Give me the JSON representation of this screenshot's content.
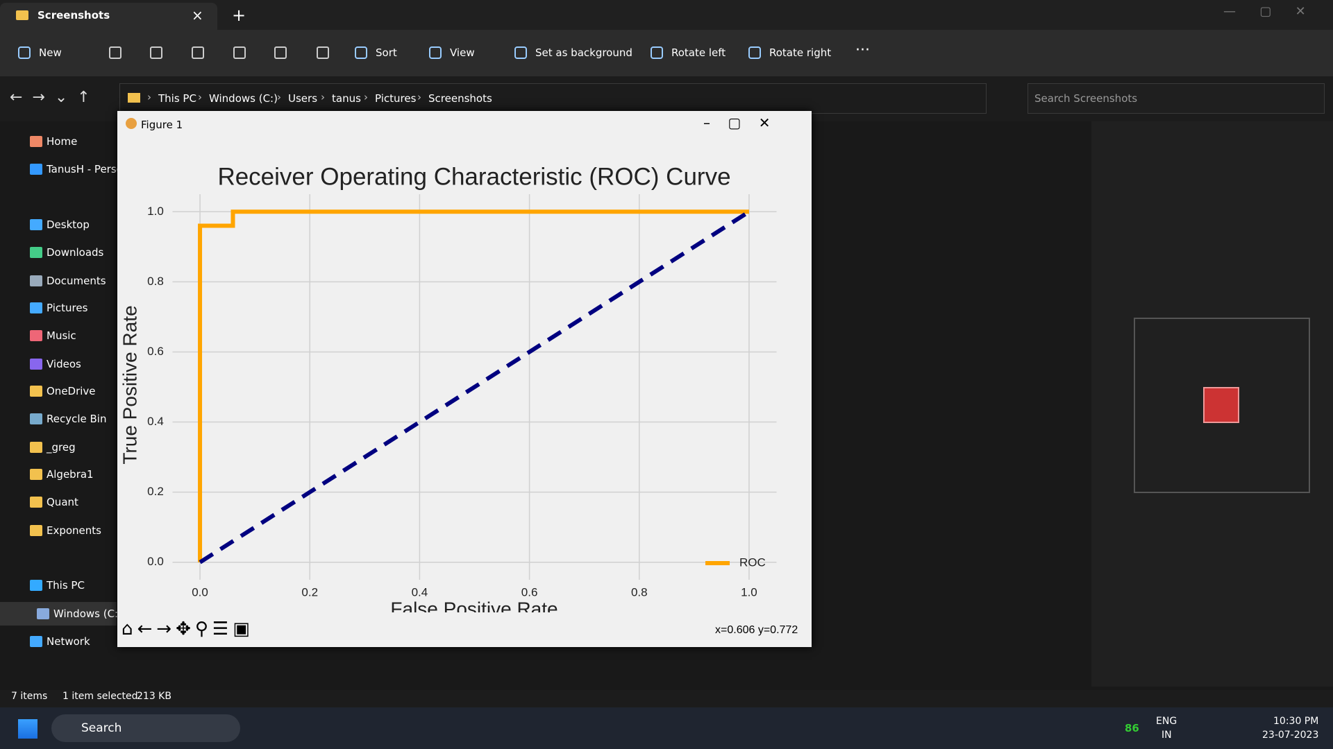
{
  "tab": {
    "title": "Screenshots"
  },
  "toolbar": {
    "items": [
      "New",
      "Sort",
      "View",
      "Set as background",
      "Rotate left",
      "Rotate right"
    ]
  },
  "address": {
    "crumbs": [
      "This PC",
      "Windows (C:)",
      "Users",
      "tanus",
      "Pictures",
      "Screenshots"
    ],
    "search": "Search Screenshots"
  },
  "sidebar": {
    "items": [
      "Home",
      "TanusH - Personal",
      "Desktop",
      "Downloads",
      "Documents",
      "Pictures",
      "Music",
      "Videos",
      "OneDrive",
      "Recycle Bin",
      "_greg",
      "Algebra1",
      "Quant",
      "Exponents",
      "This PC",
      "Windows (C:)",
      "Network"
    ]
  },
  "status": {
    "count": "7 items",
    "selected": "1 item selected",
    "size": "213 KB"
  },
  "figure": {
    "title": "Figure 1",
    "coords": "x=0.606 y=0.772"
  },
  "taskbar": {
    "search": "Search",
    "weather": "86",
    "lang": "ENG",
    "region": "IN",
    "time": "10:30 PM",
    "date": "23-07-2023"
  },
  "chart_data": {
    "type": "line",
    "title": "Receiver Operating Characteristic (ROC) Curve",
    "x_label": "False Positive Rate",
    "y_label": "True Positive Rate",
    "series": [
      {
        "name": "ROC",
        "color": "orange",
        "x": [
          0,
          0,
          0.06,
          0.06,
          1
        ],
        "values": [
          0,
          0.96,
          0.96,
          1,
          1
        ]
      },
      {
        "color": "navy",
        "dashed": true,
        "x": [
          0,
          1
        ],
        "values": [
          0,
          1
        ]
      }
    ],
    "xlim": [
      -0.05,
      1.05
    ],
    "ylim": [
      -0.05,
      1.05
    ],
    "xticks": [
      {
        "value": 0,
        "label": "0.0"
      },
      0.2,
      0.4,
      0.6,
      0.8,
      {
        "value": 1,
        "label": "1.0"
      }
    ],
    "yticks": [
      {
        "value": 0,
        "label": "0.0"
      },
      0.2,
      0.4,
      0.6,
      0.8,
      {
        "value": 1,
        "label": "1.0"
      }
    ],
    "grid": true,
    "legend": "lower right"
  }
}
